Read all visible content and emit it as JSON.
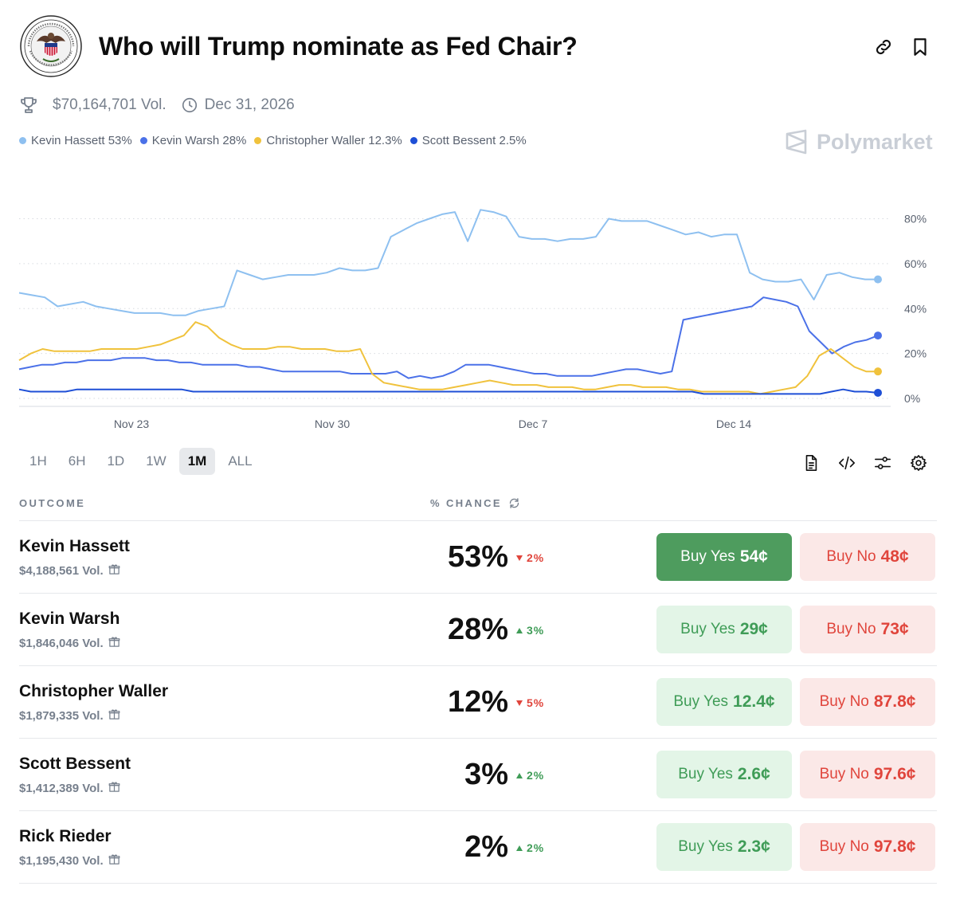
{
  "header": {
    "title": "Who will Trump nominate as Fed Chair?"
  },
  "meta": {
    "volume": "$70,164,701 Vol.",
    "end_date": "Dec 31, 2026"
  },
  "legend": [
    {
      "label": "Kevin Hassett 53%",
      "color": "#8ec0f0"
    },
    {
      "label": "Kevin Warsh 28%",
      "color": "#4b71e8"
    },
    {
      "label": "Christopher Waller 12.3%",
      "color": "#f0c23c"
    },
    {
      "label": "Scott Bessent 2.5%",
      "color": "#1e4fd6"
    }
  ],
  "brand": "Polymarket",
  "chart_data": {
    "type": "line",
    "x_ticks": [
      "Nov 23",
      "Nov 30",
      "Dec 7",
      "Dec 14"
    ],
    "y_ticks": [
      "80%",
      "60%",
      "40%",
      "20%",
      "0%"
    ],
    "ylim": [
      0,
      88
    ],
    "series": [
      {
        "name": "Kevin Hassett",
        "color": "#8ec0f0",
        "values": [
          47,
          46,
          45,
          41,
          42,
          43,
          41,
          40,
          39,
          38,
          38,
          38,
          37,
          37,
          39,
          40,
          41,
          57,
          55,
          53,
          54,
          55,
          55,
          55,
          56,
          58,
          57,
          57,
          58,
          72,
          75,
          78,
          80,
          82,
          83,
          70,
          84,
          83,
          81,
          72,
          71,
          71,
          70,
          71,
          71,
          72,
          80,
          79,
          79,
          79,
          77,
          75,
          73,
          74,
          72,
          73,
          73,
          56,
          53,
          52,
          52,
          53,
          44,
          55,
          56,
          54,
          53,
          53
        ]
      },
      {
        "name": "Kevin Warsh",
        "color": "#4b71e8",
        "values": [
          13,
          14,
          15,
          15,
          16,
          16,
          17,
          17,
          17,
          18,
          18,
          18,
          17,
          17,
          16,
          16,
          15,
          15,
          15,
          15,
          14,
          14,
          13,
          12,
          12,
          12,
          12,
          12,
          12,
          11,
          11,
          11,
          11,
          12,
          9,
          10,
          9,
          10,
          12,
          15,
          15,
          15,
          14,
          13,
          12,
          11,
          11,
          10,
          10,
          10,
          10,
          11,
          12,
          13,
          13,
          12,
          11,
          12,
          35,
          36,
          37,
          38,
          39,
          40,
          41,
          45,
          44,
          43,
          41,
          30,
          25,
          20,
          23,
          25,
          26,
          28
        ]
      },
      {
        "name": "Christopher Waller",
        "color": "#f0c23c",
        "values": [
          17,
          20,
          22,
          21,
          21,
          21,
          21,
          22,
          22,
          22,
          22,
          23,
          24,
          26,
          28,
          34,
          32,
          27,
          24,
          22,
          22,
          22,
          23,
          23,
          22,
          22,
          22,
          21,
          21,
          22,
          11,
          7,
          6,
          5,
          4,
          4,
          4,
          5,
          6,
          7,
          8,
          7,
          6,
          6,
          6,
          5,
          5,
          5,
          4,
          4,
          5,
          6,
          6,
          5,
          5,
          5,
          4,
          4,
          3,
          3,
          3,
          3,
          3,
          2,
          3,
          4,
          5,
          10,
          19,
          22,
          18,
          14,
          12,
          12
        ]
      },
      {
        "name": "Scott Bessent",
        "color": "#1e4fd6",
        "values": [
          4,
          3,
          3,
          3,
          3,
          4,
          4,
          4,
          4,
          4,
          4,
          4,
          4,
          4,
          4,
          3,
          3,
          3,
          3,
          3,
          3,
          3,
          3,
          3,
          3,
          3,
          3,
          3,
          3,
          3,
          3,
          3,
          3,
          3,
          3,
          3,
          3,
          3,
          3,
          3,
          3,
          3,
          3,
          3,
          3,
          3,
          3,
          3,
          3,
          3,
          3,
          3,
          3,
          3,
          3,
          3,
          3,
          3,
          3,
          2,
          2,
          2,
          2,
          2,
          2,
          2,
          2,
          2,
          2,
          2,
          3,
          4,
          3,
          3,
          2.5
        ]
      }
    ]
  },
  "ranges": [
    "1H",
    "6H",
    "1D",
    "1W",
    "1M",
    "ALL"
  ],
  "active_range": "1M",
  "table": {
    "outcome_header": "OUTCOME",
    "chance_header": "% CHANCE",
    "rows": [
      {
        "name": "Kevin Hassett",
        "volume": "$4,188,561 Vol.",
        "chance": "53%",
        "delta": "2%",
        "direction": "down",
        "yes_label": "Buy Yes",
        "yes_price": "54¢",
        "no_label": "Buy No",
        "no_price": "48¢"
      },
      {
        "name": "Kevin Warsh",
        "volume": "$1,846,046 Vol.",
        "chance": "28%",
        "delta": "3%",
        "direction": "up",
        "yes_label": "Buy Yes",
        "yes_price": "29¢",
        "no_label": "Buy No",
        "no_price": "73¢"
      },
      {
        "name": "Christopher Waller",
        "volume": "$1,879,335 Vol.",
        "chance": "12%",
        "delta": "5%",
        "direction": "down",
        "yes_label": "Buy Yes",
        "yes_price": "12.4¢",
        "no_label": "Buy No",
        "no_price": "87.8¢"
      },
      {
        "name": "Scott Bessent",
        "volume": "$1,412,389 Vol.",
        "chance": "3%",
        "delta": "2%",
        "direction": "up",
        "yes_label": "Buy Yes",
        "yes_price": "2.6¢",
        "no_label": "Buy No",
        "no_price": "97.6¢"
      },
      {
        "name": "Rick Rieder",
        "volume": "$1,195,430 Vol.",
        "chance": "2%",
        "delta": "2%",
        "direction": "up",
        "yes_label": "Buy Yes",
        "yes_price": "2.3¢",
        "no_label": "Buy No",
        "no_price": "97.8¢"
      }
    ]
  }
}
